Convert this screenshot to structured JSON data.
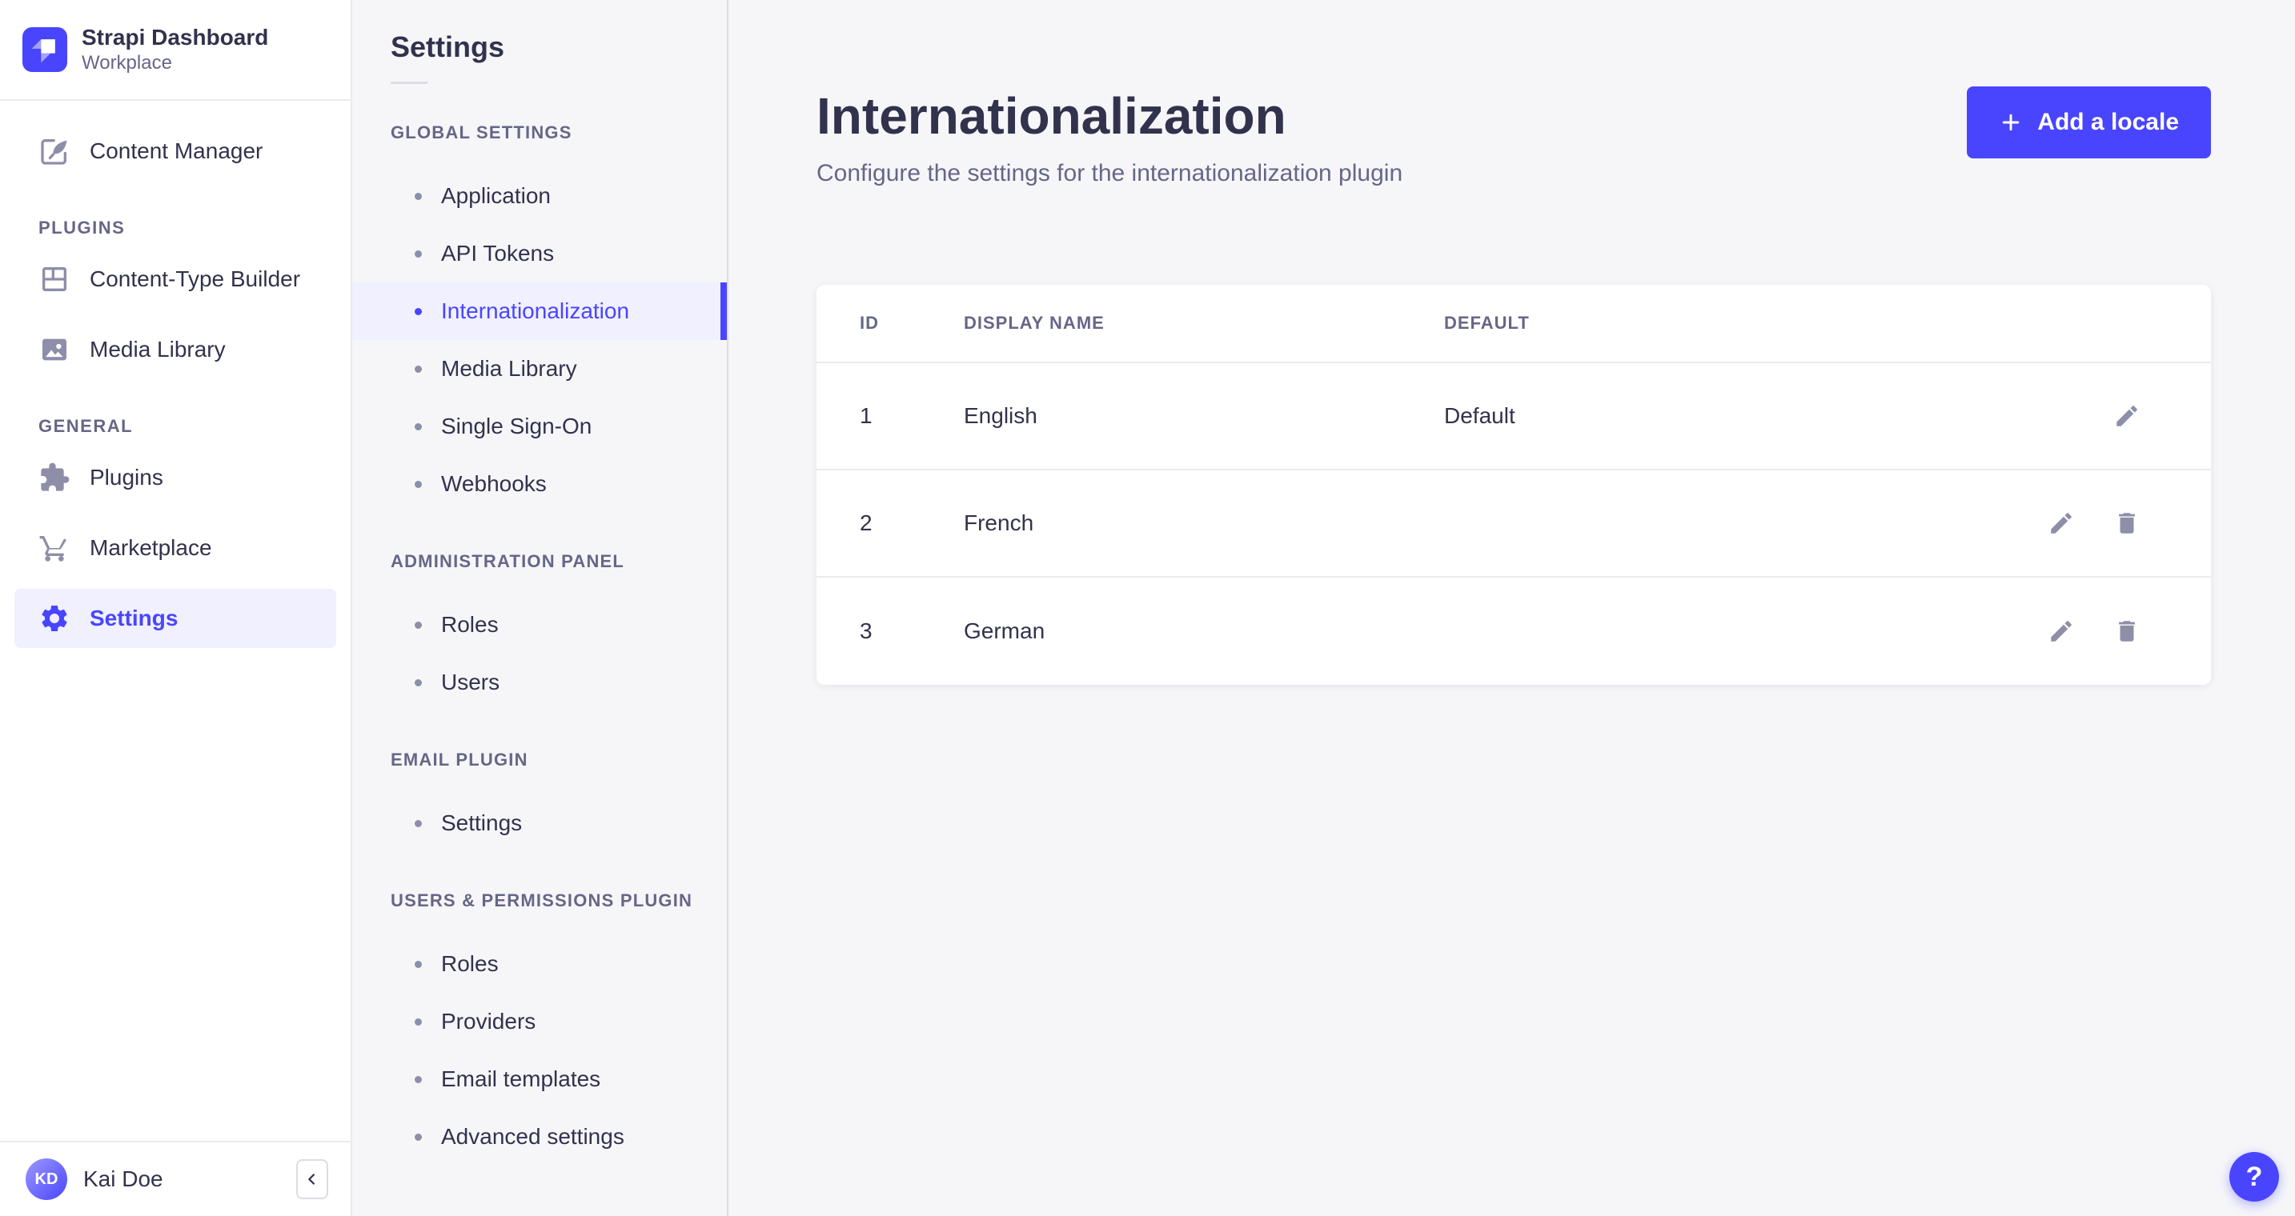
{
  "colors": {
    "accent": "#4945ff",
    "accent_light_bg": "#f0f0ff",
    "text_dark": "#32324d",
    "text_gray": "#666687",
    "icon_gray": "#8e8ea9",
    "border": "#eaeaef",
    "panel_bg": "#f6f6f9"
  },
  "sidebar": {
    "header": {
      "title": "Strapi Dashboard",
      "subtitle": "Workplace",
      "logo_icon": "strapi-logo"
    },
    "groups": [
      {
        "label": "",
        "items": [
          {
            "label": "Content Manager",
            "icon": "pen-icon",
            "active": false
          }
        ]
      },
      {
        "label": "PLUGINS",
        "items": [
          {
            "label": "Content-Type Builder",
            "icon": "layout-icon",
            "active": false
          },
          {
            "label": "Media Library",
            "icon": "image-icon",
            "active": false
          }
        ]
      },
      {
        "label": "GENERAL",
        "items": [
          {
            "label": "Plugins",
            "icon": "puzzle-icon",
            "active": false
          },
          {
            "label": "Marketplace",
            "icon": "cart-icon",
            "active": false
          },
          {
            "label": "Settings",
            "icon": "gear-icon",
            "active": true
          }
        ]
      }
    ],
    "footer": {
      "initials": "KD",
      "name": "Kai Doe",
      "collapse_icon": "chevron-left-icon"
    }
  },
  "subnav": {
    "title": "Settings",
    "sections": [
      {
        "label": "GLOBAL SETTINGS",
        "items": [
          {
            "label": "Application",
            "active": false
          },
          {
            "label": "API Tokens",
            "active": false
          },
          {
            "label": "Internationalization",
            "active": true
          },
          {
            "label": "Media Library",
            "active": false
          },
          {
            "label": "Single Sign-On",
            "active": false
          },
          {
            "label": "Webhooks",
            "active": false
          }
        ]
      },
      {
        "label": "ADMINISTRATION PANEL",
        "items": [
          {
            "label": "Roles",
            "active": false
          },
          {
            "label": "Users",
            "active": false
          }
        ]
      },
      {
        "label": "EMAIL PLUGIN",
        "items": [
          {
            "label": "Settings",
            "active": false
          }
        ]
      },
      {
        "label": "USERS & PERMISSIONS PLUGIN",
        "items": [
          {
            "label": "Roles",
            "active": false
          },
          {
            "label": "Providers",
            "active": false
          },
          {
            "label": "Email templates",
            "active": false
          },
          {
            "label": "Advanced settings",
            "active": false
          }
        ]
      }
    ]
  },
  "content": {
    "title": "Internationalization",
    "subtitle": "Configure the settings for the internationalization plugin",
    "add_button_label": "Add a locale",
    "table": {
      "headers": {
        "id": "ID",
        "name": "DISPLAY NAME",
        "default": "DEFAULT"
      },
      "rows": [
        {
          "id": "1",
          "display_name": "English",
          "default": "Default",
          "actions": [
            "edit"
          ]
        },
        {
          "id": "2",
          "display_name": "French",
          "default": "",
          "actions": [
            "edit",
            "delete"
          ]
        },
        {
          "id": "3",
          "display_name": "German",
          "default": "",
          "actions": [
            "edit",
            "delete"
          ]
        }
      ]
    }
  },
  "help": {
    "label": "?"
  }
}
